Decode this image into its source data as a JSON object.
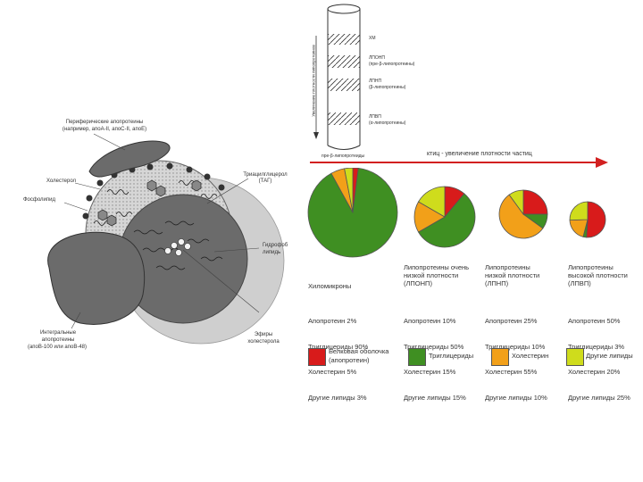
{
  "lipoprotein_structure": {
    "peripheral_apoproteins": "Периферические апопротеины",
    "peripheral_examples": "(например, апоA-II, апоC-II, апоE)",
    "cholesterol": "Холестерол",
    "phospholipid": "Фосфолипид",
    "triacylglycerol": "Триацилглицерол",
    "triacylglycerol_abbr": "(ТАГ)",
    "hydrophobic_core": "Гидрофоб",
    "hydrophobic_core_2": "липидь",
    "cholesterol_esters": "Эфиры",
    "cholesterol_esters_2": "холестерола",
    "integral_apoproteins": "Интегральные",
    "integral_apoproteins_2": "апопротеины",
    "integral_examples": "(апоB-100 или апоB-48)"
  },
  "density_column": {
    "axis_label": "Увеличение плотности липопротеинов",
    "layers": [
      {
        "label": "ХМ",
        "sub": ""
      },
      {
        "label": "ЛПОНП",
        "sub": "(пре-β-липопротеины)"
      },
      {
        "label": "ЛПНП",
        "sub": "(β-липопротеины)"
      },
      {
        "label": "ЛПВП",
        "sub": "(α-липопротеины)"
      }
    ],
    "bottom_label": "пре-β-липопротеиды"
  },
  "arrow_caption": "ктиц - увеличение плотности частиц",
  "colors": {
    "protein": "#d81b1b",
    "triglycerides": "#3f8f22",
    "cholesterol": "#f2a019",
    "other_lipids": "#cfdc1c",
    "arrow": "#d22020"
  },
  "chart_data": [
    {
      "type": "pie",
      "name": "Хиломикроны",
      "labels": [
        "Апопротеин",
        "Триглицериды",
        "Холестерин",
        "Другие липиды"
      ],
      "values": [
        2,
        90,
        5,
        3
      ]
    },
    {
      "type": "pie",
      "name": "ЛПОНП",
      "labels": [
        "Апопротеин",
        "Триглицериды",
        "Холестерин",
        "Другие липиды"
      ],
      "values": [
        10,
        50,
        15,
        15
      ]
    },
    {
      "type": "pie",
      "name": "ЛПНП",
      "labels": [
        "Апопротеин",
        "Триглицериды",
        "Холестерин",
        "Другие липиды"
      ],
      "values": [
        25,
        10,
        55,
        10
      ]
    },
    {
      "type": "pie",
      "name": "ЛПВП",
      "labels": [
        "Апопротеин",
        "Триглицериды",
        "Холестерин",
        "Другие липиды"
      ],
      "values": [
        50,
        3,
        20,
        25
      ]
    }
  ],
  "captions": [
    {
      "title": "Хиломикроны",
      "title2": "",
      "lines": [
        "Апопротеин 2%",
        "Триглицериды 90%",
        "Холестерин 5%",
        "Другие липиды 3%"
      ]
    },
    {
      "title": "Липопротеины очень",
      "title2": "низкой плотности",
      "title3": "(ЛПОНП)",
      "lines": [
        "Апопротеин 10%",
        "Триглицериды 50%",
        "Холестерин 15%",
        "Другие липиды 15%"
      ]
    },
    {
      "title": "Липопротеины",
      "title2": "низкой плотности",
      "title3": "(ЛПНП)",
      "lines": [
        "Апопротеин 25%",
        "Триглицериды 10%",
        "Холестерин 55%",
        "Другие липиды 10%"
      ]
    },
    {
      "title": "Липопротеины",
      "title2": "высокой плотности",
      "title3": "(ЛПВП)",
      "lines": [
        "Апопротеин 50%",
        "Триглицериды 3%",
        "Холестерин 20%",
        "Другие липиды 25%"
      ]
    }
  ],
  "legend": [
    {
      "label": "Белковая оболочка",
      "label2": "(апопротеин)",
      "color": "#d81b1b"
    },
    {
      "label": "Триглицериды",
      "label2": "",
      "color": "#3f8f22"
    },
    {
      "label": "Холестерин",
      "label2": "",
      "color": "#f2a019"
    },
    {
      "label": "Другие липиды",
      "label2": "",
      "color": "#cfdc1c"
    }
  ]
}
